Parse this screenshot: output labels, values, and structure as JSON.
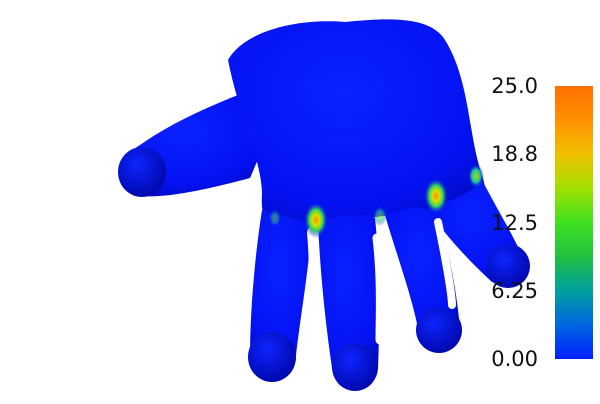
{
  "colorbar": {
    "ticks": [
      {
        "label": "25.0",
        "value": 25.0
      },
      {
        "label": "18.8",
        "value": 18.8
      },
      {
        "label": "12.5",
        "value": 12.5
      },
      {
        "label": "6.25",
        "value": 6.25
      },
      {
        "label": "0.00",
        "value": 0.0
      }
    ],
    "range": [
      0.0,
      25.0
    ],
    "colormap": [
      "#0020ff",
      "#0066e0",
      "#00a0a0",
      "#20c040",
      "#40e020",
      "#a0e000",
      "#f0c000",
      "#ff9000",
      "#ff7000"
    ]
  },
  "mesh": {
    "base_color": "#0412f2",
    "shadow_color": "#00069a",
    "hotspot_colors": [
      "#ff8a00",
      "#c8e000",
      "#40e040",
      "#00c8c0"
    ]
  }
}
